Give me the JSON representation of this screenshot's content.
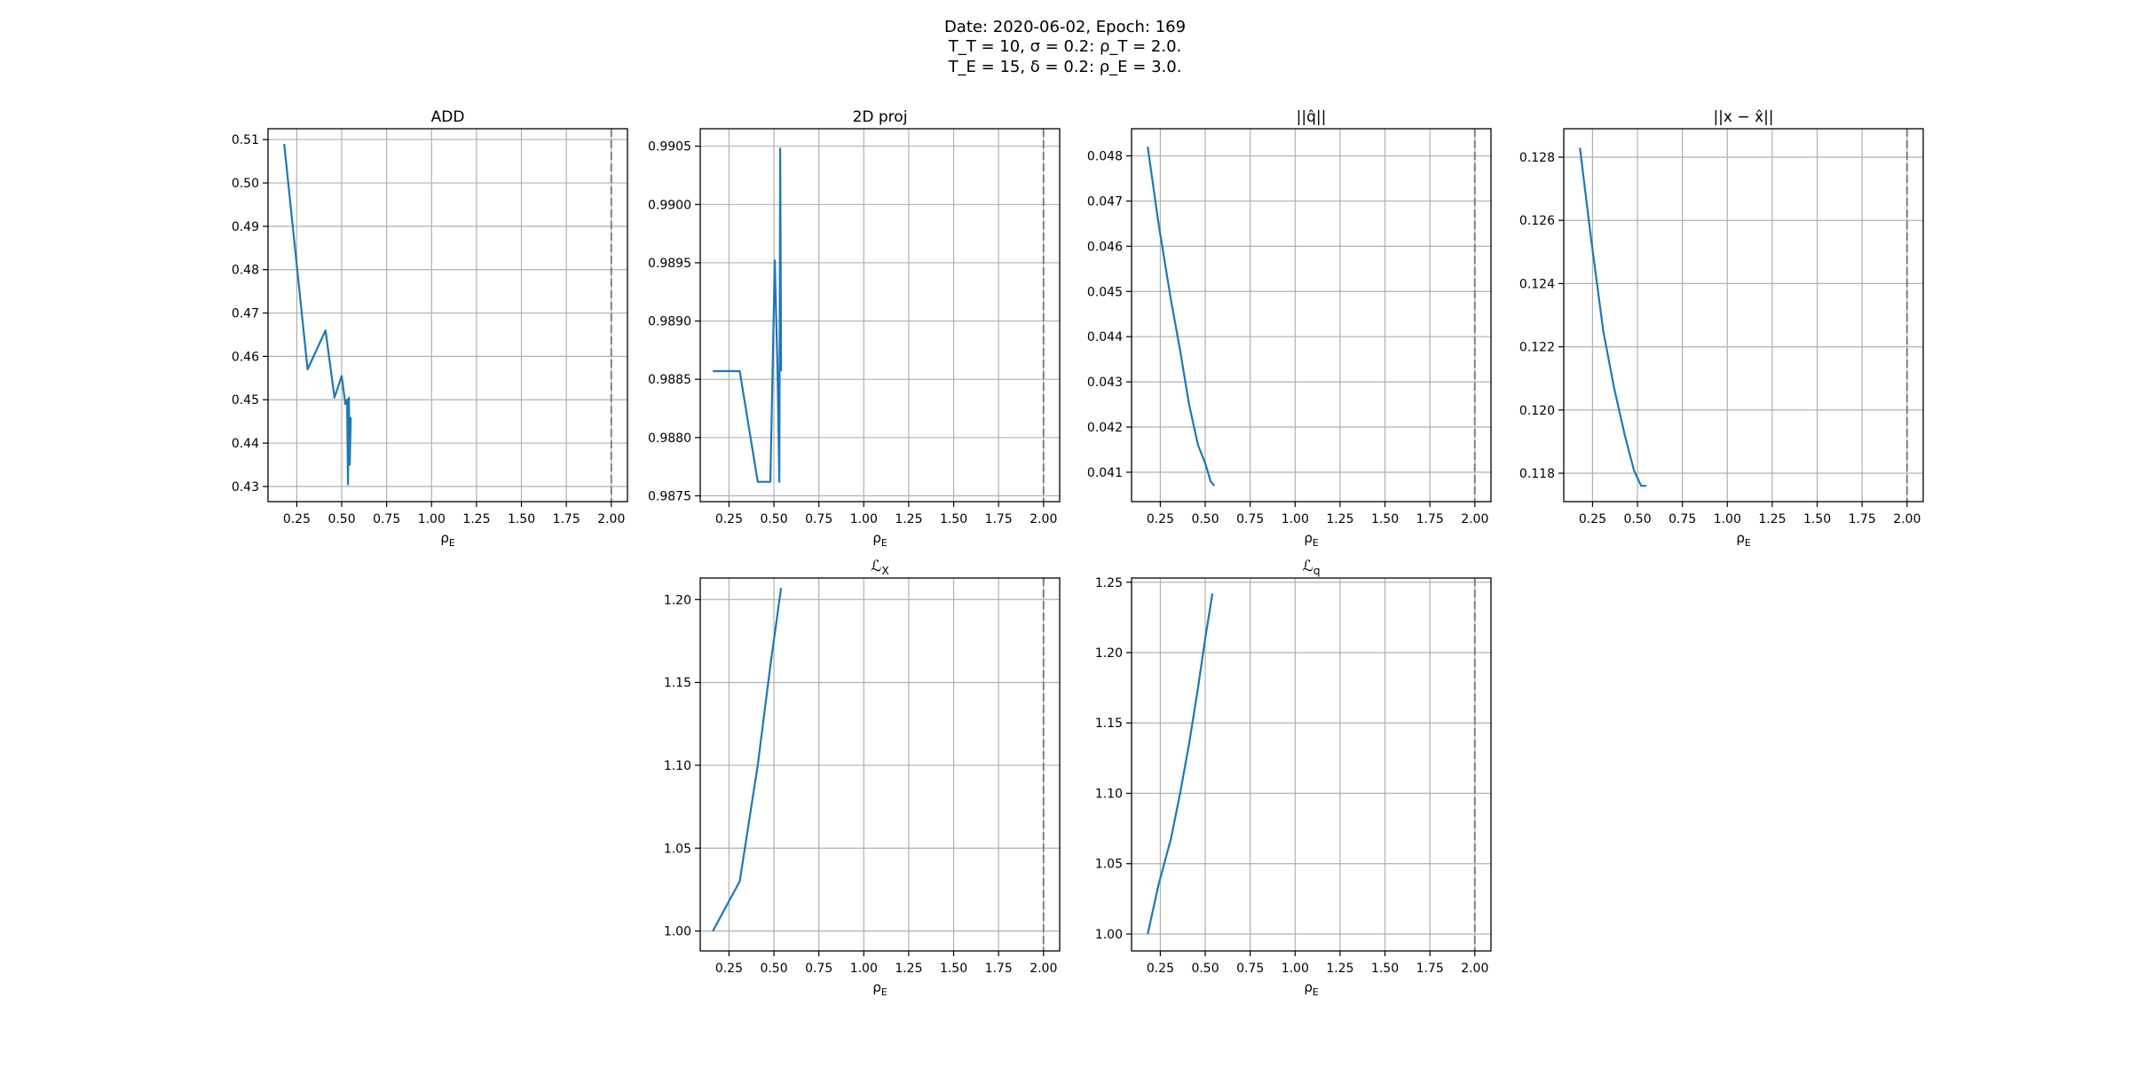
{
  "figure": {
    "suptitle_line1": "Date: 2020-06-02, Epoch: 169",
    "suptitle_line2": "T_T = 10, σ = 0.2: ρ_T = 2.0.",
    "suptitle_line3": "T_E = 15, δ = 0.2: ρ_E = 3.0."
  },
  "colors": {
    "line": "#1f77b4",
    "grid": "#b0b0b0",
    "vline": "#7f7f7f"
  },
  "chart_data": [
    {
      "id": "add",
      "type": "line",
      "title": "ADD",
      "xlabel": "ρ_E",
      "xlim": [
        0.09,
        2.09
      ],
      "ylim": [
        0.4265,
        0.5125
      ],
      "xticks": [
        0.25,
        0.5,
        0.75,
        1.0,
        1.25,
        1.5,
        1.75,
        2.0
      ],
      "xtick_labels": [
        "0.25",
        "0.50",
        "0.75",
        "1.00",
        "1.25",
        "1.50",
        "1.75",
        "2.00"
      ],
      "yticks": [
        0.43,
        0.44,
        0.45,
        0.46,
        0.47,
        0.48,
        0.49,
        0.5,
        0.51
      ],
      "ytick_labels": [
        "0.43",
        "0.44",
        "0.45",
        "0.46",
        "0.47",
        "0.48",
        "0.49",
        "0.50",
        "0.51"
      ],
      "vline": 2.0,
      "grid": true,
      "x": [
        0.18,
        0.31,
        0.41,
        0.46,
        0.5,
        0.52,
        0.53,
        0.535,
        0.54,
        0.545,
        0.55
      ],
      "y": [
        0.509,
        0.457,
        0.466,
        0.4505,
        0.4555,
        0.449,
        0.45,
        0.4305,
        0.4505,
        0.435,
        0.446
      ]
    },
    {
      "id": "proj2d",
      "type": "line",
      "title": "2D proj",
      "xlabel": "ρ_E",
      "xlim": [
        0.09,
        2.09
      ],
      "ylim": [
        0.98745,
        0.99065
      ],
      "xticks": [
        0.25,
        0.5,
        0.75,
        1.0,
        1.25,
        1.5,
        1.75,
        2.0
      ],
      "xtick_labels": [
        "0.25",
        "0.50",
        "0.75",
        "1.00",
        "1.25",
        "1.50",
        "1.75",
        "2.00"
      ],
      "yticks": [
        0.9875,
        0.988,
        0.9885,
        0.989,
        0.9895,
        0.99,
        0.9905
      ],
      "ytick_labels": [
        "0.9875",
        "0.9880",
        "0.9885",
        "0.9890",
        "0.9895",
        "0.9900",
        "0.9905"
      ],
      "vline": 2.0,
      "grid": true,
      "x": [
        0.16,
        0.31,
        0.41,
        0.48,
        0.505,
        0.52,
        0.53,
        0.535,
        0.54
      ],
      "y": [
        0.98857,
        0.98857,
        0.98762,
        0.98762,
        0.98952,
        0.98857,
        0.98762,
        0.99048,
        0.98857
      ]
    },
    {
      "id": "qhat",
      "type": "line",
      "title": "||q̂||",
      "xlabel": "ρ_E",
      "xlim": [
        0.09,
        2.09
      ],
      "ylim": [
        0.04035,
        0.0486
      ],
      "xticks": [
        0.25,
        0.5,
        0.75,
        1.0,
        1.25,
        1.5,
        1.75,
        2.0
      ],
      "xtick_labels": [
        "0.25",
        "0.50",
        "0.75",
        "1.00",
        "1.25",
        "1.50",
        "1.75",
        "2.00"
      ],
      "yticks": [
        0.041,
        0.042,
        0.043,
        0.044,
        0.045,
        0.046,
        0.047,
        0.048
      ],
      "ytick_labels": [
        "0.041",
        "0.042",
        "0.043",
        "0.044",
        "0.045",
        "0.046",
        "0.047",
        "0.048"
      ],
      "vline": 2.0,
      "grid": true,
      "x": [
        0.18,
        0.24,
        0.31,
        0.36,
        0.41,
        0.46,
        0.5,
        0.53,
        0.55
      ],
      "y": [
        0.0482,
        0.0465,
        0.0448,
        0.0437,
        0.0425,
        0.0416,
        0.0412,
        0.0408,
        0.0407
      ]
    },
    {
      "id": "xerr",
      "type": "line",
      "title": "||x − x̂||",
      "xlabel": "ρ_E",
      "xlim": [
        0.09,
        2.09
      ],
      "ylim": [
        0.1171,
        0.1289
      ],
      "xticks": [
        0.25,
        0.5,
        0.75,
        1.0,
        1.25,
        1.5,
        1.75,
        2.0
      ],
      "xtick_labels": [
        "0.25",
        "0.50",
        "0.75",
        "1.00",
        "1.25",
        "1.50",
        "1.75",
        "2.00"
      ],
      "yticks": [
        0.118,
        0.12,
        0.122,
        0.124,
        0.126,
        0.128
      ],
      "ytick_labels": [
        "0.118",
        "0.120",
        "0.122",
        "0.124",
        "0.126",
        "0.128"
      ],
      "vline": 2.0,
      "grid": true,
      "x": [
        0.18,
        0.24,
        0.31,
        0.37,
        0.43,
        0.48,
        0.52,
        0.55
      ],
      "y": [
        0.1283,
        0.1255,
        0.1225,
        0.1207,
        0.1192,
        0.1181,
        0.1176,
        0.1176
      ]
    },
    {
      "id": "lx",
      "type": "line",
      "title": "ℒ_X",
      "xlabel": "ρ_E",
      "xlim": [
        0.09,
        2.09
      ],
      "ylim": [
        0.988,
        1.213
      ],
      "xticks": [
        0.25,
        0.5,
        0.75,
        1.0,
        1.25,
        1.5,
        1.75,
        2.0
      ],
      "xtick_labels": [
        "0.25",
        "0.50",
        "0.75",
        "1.00",
        "1.25",
        "1.50",
        "1.75",
        "2.00"
      ],
      "yticks": [
        1.0,
        1.05,
        1.1,
        1.15,
        1.2
      ],
      "ytick_labels": [
        "1.00",
        "1.05",
        "1.10",
        "1.15",
        "1.20"
      ],
      "vline": 2.0,
      "grid": true,
      "x": [
        0.16,
        0.31,
        0.41,
        0.48,
        0.54
      ],
      "y": [
        1.0,
        1.03,
        1.1,
        1.16,
        1.207
      ]
    },
    {
      "id": "lq",
      "type": "line",
      "title": "ℒ_q",
      "xlabel": "ρ_E",
      "xlim": [
        0.09,
        2.09
      ],
      "ylim": [
        0.988,
        1.253
      ],
      "xticks": [
        0.25,
        0.5,
        0.75,
        1.0,
        1.25,
        1.5,
        1.75,
        2.0
      ],
      "xtick_labels": [
        "0.25",
        "0.50",
        "0.75",
        "1.00",
        "1.25",
        "1.50",
        "1.75",
        "2.00"
      ],
      "yticks": [
        1.0,
        1.05,
        1.1,
        1.15,
        1.2,
        1.25
      ],
      "ytick_labels": [
        "1.00",
        "1.05",
        "1.10",
        "1.15",
        "1.20",
        "1.25"
      ],
      "vline": 2.0,
      "grid": true,
      "x": [
        0.18,
        0.24,
        0.31,
        0.36,
        0.41,
        0.46,
        0.5,
        0.54
      ],
      "y": [
        1.0,
        1.035,
        1.068,
        1.1,
        1.135,
        1.175,
        1.21,
        1.242
      ]
    }
  ]
}
